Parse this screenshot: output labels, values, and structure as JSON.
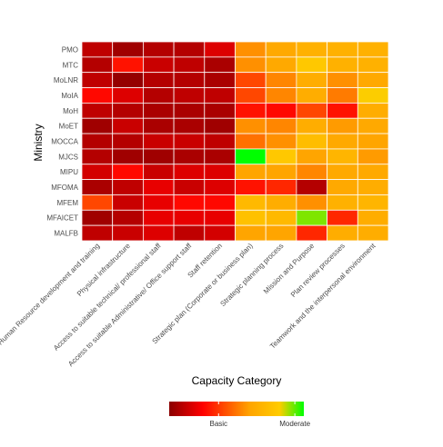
{
  "chart_data": {
    "type": "heatmap",
    "title": "",
    "xlabel": "Capacity Category",
    "ylabel": "Ministry",
    "x_categories": [
      "Human Resource development and training",
      "Physical infrastructure",
      "Access to suitable technical/ professional staff",
      "Access to suitable Administrative/ Office support staff",
      "Staff retention",
      "Strategic plan (Corporate or business plan)",
      "Strategic planning process",
      "Mission and Purpose",
      "Plan review processes",
      "Teamwork and the interpersonal environment"
    ],
    "y_categories": [
      "PMO",
      "MTC",
      "MoLNR",
      "MoIA",
      "MoH",
      "MoET",
      "MOCCA",
      "MJCS",
      "MIPU",
      "MFOMA",
      "MFEM",
      "MFAICET",
      "MALFB"
    ],
    "values": [
      [
        0.5,
        0.2,
        0.4,
        0.4,
        0.8,
        2.5,
        2.8,
        3.0,
        3.0,
        3.0
      ],
      [
        0.4,
        1.3,
        0.6,
        0.5,
        0.3,
        2.5,
        2.8,
        3.6,
        3.0,
        3.0
      ],
      [
        0.5,
        0.1,
        0.4,
        0.4,
        0.3,
        1.8,
        2.4,
        2.9,
        2.5,
        2.8
      ],
      [
        1.2,
        0.8,
        0.4,
        0.5,
        0.5,
        1.8,
        2.4,
        2.9,
        2.3,
        3.7
      ],
      [
        0.5,
        0.4,
        0.3,
        0.3,
        0.3,
        1.3,
        1.2,
        1.8,
        1.3,
        2.9
      ],
      [
        0.2,
        0.6,
        0.3,
        0.3,
        0.2,
        2.5,
        2.4,
        2.9,
        2.6,
        2.8
      ],
      [
        0.4,
        0.4,
        0.6,
        0.6,
        0.5,
        2.2,
        2.5,
        3.3,
        2.8,
        2.7
      ],
      [
        0.4,
        0.2,
        0.2,
        0.3,
        0.3,
        4.5,
        3.6,
        2.7,
        3.1,
        2.6
      ],
      [
        0.7,
        1.2,
        0.6,
        0.8,
        0.8,
        2.7,
        2.7,
        2.4,
        2.8,
        2.8
      ],
      [
        0.3,
        0.5,
        0.9,
        0.6,
        0.8,
        1.3,
        1.5,
        0.4,
        2.8,
        2.9
      ],
      [
        1.8,
        0.6,
        0.9,
        1.2,
        1.2,
        3.2,
        2.9,
        2.5,
        3.0,
        3.1
      ],
      [
        0.2,
        0.4,
        0.9,
        0.9,
        0.9,
        3.4,
        3.2,
        4.1,
        1.5,
        2.9
      ],
      [
        0.5,
        0.6,
        0.8,
        0.5,
        0.7,
        2.7,
        2.7,
        1.5,
        2.9,
        2.9
      ]
    ],
    "scale": {
      "min": 0,
      "max": 4.5,
      "colors": [
        "#8b0000",
        "#ff0000",
        "#ffa500",
        "#ffcc00",
        "#00ff00"
      ],
      "stops": [
        0,
        0.25,
        0.6,
        0.82,
        1
      ]
    },
    "legend": {
      "position": "bottom",
      "breaks": [
        {
          "label": "Basic",
          "value": 1.65
        },
        {
          "label": "Moderate",
          "value": 4.2
        }
      ]
    },
    "grid": false
  }
}
